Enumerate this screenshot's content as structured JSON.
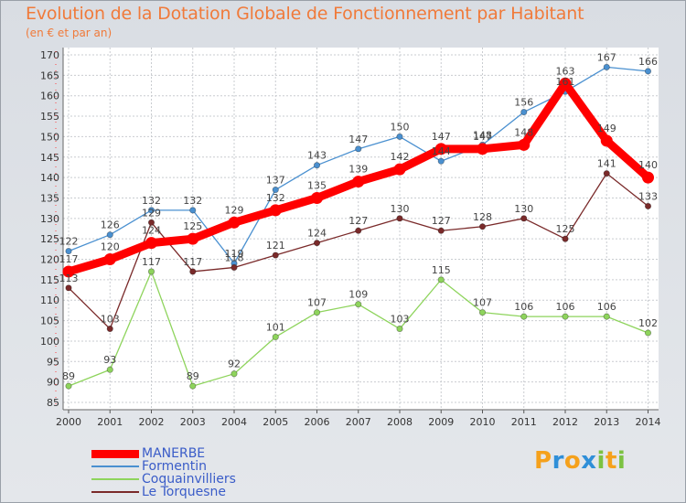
{
  "chart_data": {
    "type": "line",
    "title": "Evolution de la Dotation Globale de Fonctionnement par Habitant",
    "subtitle": "(en € et par an)",
    "x": [
      "2000",
      "2001",
      "2002",
      "2003",
      "2004",
      "2005",
      "2006",
      "2007",
      "2008",
      "2009",
      "2010",
      "2011",
      "2012",
      "2013",
      "2014"
    ],
    "y_ticks": [
      85,
      90,
      95,
      100,
      105,
      110,
      115,
      120,
      125,
      130,
      135,
      140,
      145,
      150,
      155,
      160,
      165,
      170
    ],
    "ylim": [
      85,
      170
    ],
    "grid": true,
    "legend_position": "bottom-left",
    "series": [
      {
        "name": "MANERBE",
        "color": "#ff0000",
        "values": [
          117,
          120,
          124,
          125,
          129,
          132,
          135,
          139,
          142,
          147,
          147,
          148,
          163,
          149,
          140
        ]
      },
      {
        "name": "Formentin",
        "color": "#4a90d0",
        "values": [
          122,
          126,
          132,
          132,
          119,
          137,
          143,
          147,
          150,
          144,
          148,
          156,
          161,
          167,
          166
        ]
      },
      {
        "name": "Coquainvilliers",
        "color": "#8ed45c",
        "values": [
          89,
          93,
          117,
          89,
          92,
          101,
          107,
          109,
          103,
          115,
          107,
          106,
          106,
          106,
          102
        ]
      },
      {
        "name": "Le Torquesne",
        "color": "#7a2a2a",
        "values": [
          113,
          103,
          129,
          117,
          118,
          121,
          124,
          127,
          130,
          127,
          128,
          130,
          125,
          141,
          133
        ]
      }
    ]
  },
  "brand": {
    "letters": [
      "P",
      "r",
      "o",
      "x",
      "i",
      "t",
      "i"
    ],
    "colors": [
      "#f5a11c",
      "#2f8fd8",
      "#f5a11c",
      "#2f8fd8",
      "#7cc242",
      "#f5a11c",
      "#7cc242"
    ]
  }
}
